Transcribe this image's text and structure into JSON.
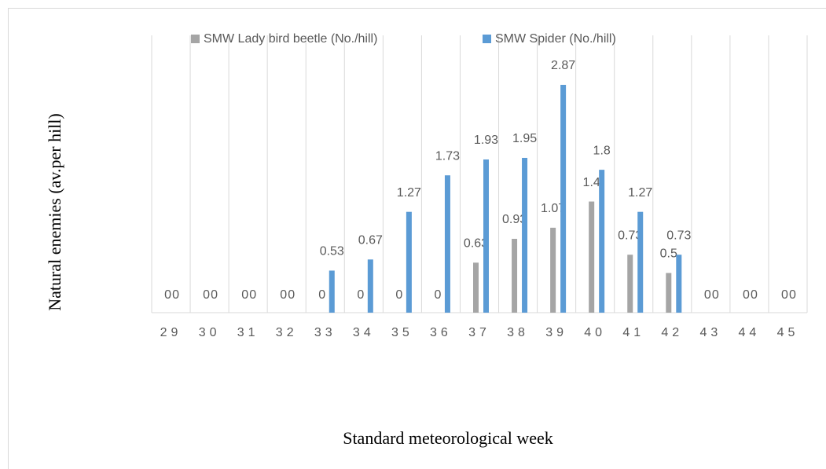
{
  "chart_data": {
    "type": "bar",
    "x_label": "Standard meteorological week",
    "y_label": "Natural enemies (av.per hill)",
    "categories": [
      "29",
      "30",
      "31",
      "32",
      "33",
      "34",
      "35",
      "36",
      "37",
      "38",
      "39",
      "40",
      "41",
      "42",
      "43",
      "44",
      "45"
    ],
    "series": [
      {
        "name": "SMW Lady bird beetle (No./hill)",
        "color": "#a5a5a5",
        "values": [
          0,
          0,
          0,
          0,
          0,
          0,
          0,
          0,
          0.63,
          0.93,
          1.07,
          1.4,
          0.73,
          0.5,
          0,
          0,
          0
        ]
      },
      {
        "name": "SMW Spider (No./hill)",
        "color": "#5b9bd5",
        "values": [
          0,
          0,
          0,
          0,
          0.53,
          0.67,
          1.27,
          1.73,
          1.93,
          1.95,
          2.87,
          1.8,
          1.27,
          0.73,
          0,
          0,
          0
        ]
      }
    ],
    "legend": "top"
  }
}
